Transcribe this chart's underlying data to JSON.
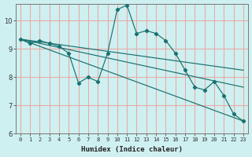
{
  "xlabel": "Humidex (Indice chaleur)",
  "bg_color": "#cff0f0",
  "plot_bg_color": "#cff0f0",
  "grid_color": "#e8aaaa",
  "line_color": "#1a7070",
  "xlim": [
    -0.5,
    23.5
  ],
  "ylim": [
    6.0,
    10.6
  ],
  "xticks": [
    0,
    1,
    2,
    3,
    4,
    5,
    6,
    7,
    8,
    9,
    10,
    11,
    12,
    13,
    14,
    15,
    16,
    17,
    18,
    19,
    20,
    21,
    22,
    23
  ],
  "yticks": [
    6,
    7,
    8,
    9,
    10
  ],
  "series": {
    "line_main": {
      "x": [
        0,
        1,
        2,
        3,
        4,
        5,
        6,
        7,
        8,
        9,
        10,
        11,
        12,
        13,
        14,
        15,
        16,
        17,
        18,
        19,
        20,
        21,
        22,
        23
      ],
      "y": [
        9.35,
        9.2,
        9.3,
        9.2,
        9.1,
        8.85,
        7.8,
        8.0,
        7.85,
        8.85,
        10.4,
        10.55,
        9.55,
        9.65,
        9.55,
        9.3,
        8.85,
        8.25,
        7.65,
        7.55,
        7.85,
        7.35,
        6.7,
        6.45
      ]
    },
    "line_trend1": {
      "x": [
        0,
        23
      ],
      "y": [
        9.35,
        6.45
      ]
    },
    "line_trend2": {
      "x": [
        0,
        23
      ],
      "y": [
        9.35,
        7.65
      ]
    },
    "line_trend3": {
      "x": [
        0,
        23
      ],
      "y": [
        9.35,
        8.25
      ]
    }
  }
}
